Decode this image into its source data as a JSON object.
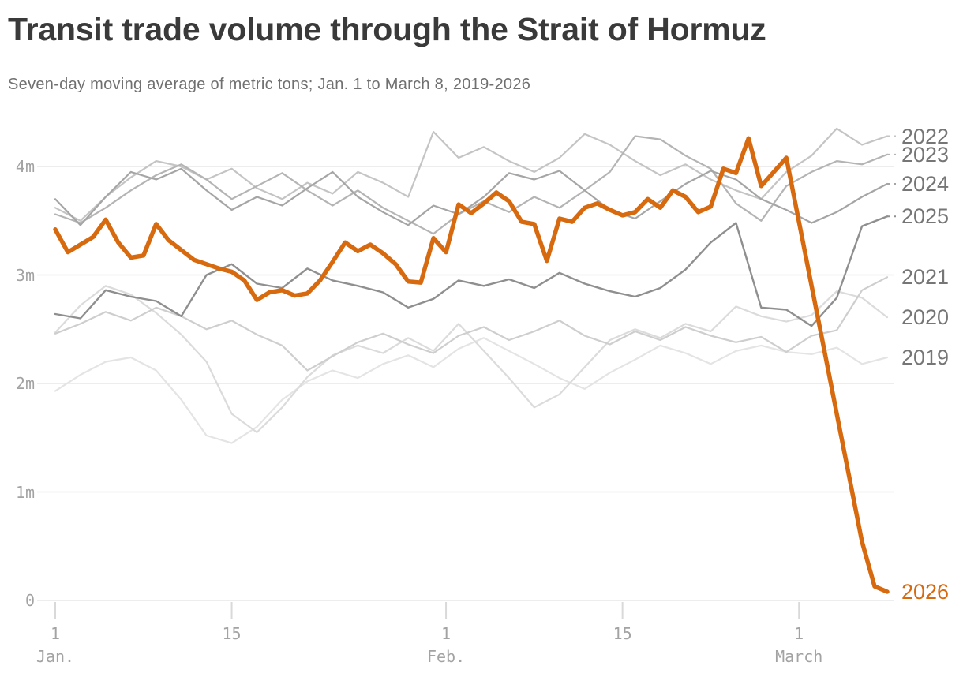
{
  "chart_data": {
    "type": "line",
    "title": "Transit trade volume through the Strait of Hormuz",
    "subtitle": "Seven-day moving average of metric tons; Jan. 1 to March 8, 2019-2026",
    "xlabel": "",
    "ylabel": "",
    "x_unit": "days since Jan. 1",
    "x_range_days": [
      0,
      66
    ],
    "ylim": [
      0,
      4.45
    ],
    "grid": "horizontal",
    "legend_position": "right-edge-labels",
    "highlight_series": "2026",
    "colors": {
      "highlight": "#d7690f",
      "gridline": "#e7e7e7",
      "tick_text": "#a3a3a3",
      "label_text": "#767676",
      "title_text": "#3a3a3a",
      "subtitle_text": "#707070"
    },
    "yticks": [
      {
        "value": 0,
        "label": "0"
      },
      {
        "value": 1,
        "label": "1m"
      },
      {
        "value": 2,
        "label": "2m"
      },
      {
        "value": 3,
        "label": "3m"
      },
      {
        "value": 4,
        "label": "4m"
      }
    ],
    "xticks": [
      {
        "day": 0,
        "day_label": "1",
        "month_label": "Jan."
      },
      {
        "day": 14,
        "day_label": "15",
        "month_label": ""
      },
      {
        "day": 31,
        "day_label": "1",
        "month_label": "Feb."
      },
      {
        "day": 45,
        "day_label": "15",
        "month_label": ""
      },
      {
        "day": 59,
        "day_label": "1",
        "month_label": "March"
      }
    ],
    "dashed_label_leaders": [
      "2022",
      "2023",
      "2024",
      "2025"
    ],
    "series": [
      {
        "name": "2019",
        "color": "#e4e4e4",
        "width": 2.2,
        "step_days": 2,
        "values": [
          1.93,
          2.08,
          2.2,
          2.24,
          2.12,
          1.85,
          1.52,
          1.45,
          1.6,
          1.85,
          2.02,
          2.12,
          2.05,
          2.18,
          2.26,
          2.15,
          2.32,
          2.42,
          2.3,
          2.18,
          2.05,
          1.95,
          2.1,
          2.22,
          2.35,
          2.28,
          2.18,
          2.3,
          2.35,
          2.29,
          2.27,
          2.33,
          2.18,
          2.24
        ]
      },
      {
        "name": "2020",
        "color": "#dbdbdb",
        "width": 2.2,
        "step_days": 2,
        "values": [
          2.47,
          2.72,
          2.9,
          2.82,
          2.65,
          2.45,
          2.2,
          1.72,
          1.55,
          1.78,
          2.06,
          2.26,
          2.35,
          2.28,
          2.42,
          2.3,
          2.55,
          2.3,
          2.05,
          1.78,
          1.9,
          2.15,
          2.4,
          2.5,
          2.42,
          2.55,
          2.48,
          2.71,
          2.62,
          2.57,
          2.63,
          2.85,
          2.79,
          2.61
        ]
      },
      {
        "name": "2021",
        "color": "#cecece",
        "width": 2.2,
        "step_days": 2,
        "values": [
          2.46,
          2.55,
          2.66,
          2.58,
          2.7,
          2.62,
          2.5,
          2.58,
          2.45,
          2.35,
          2.12,
          2.25,
          2.38,
          2.46,
          2.36,
          2.28,
          2.44,
          2.52,
          2.4,
          2.48,
          2.58,
          2.44,
          2.36,
          2.48,
          2.4,
          2.52,
          2.44,
          2.38,
          2.43,
          2.29,
          2.44,
          2.49,
          2.86,
          2.98
        ]
      },
      {
        "name": "2022",
        "color": "#c4c4c4",
        "width": 2.2,
        "step_days": 2,
        "values": [
          3.62,
          3.5,
          3.72,
          3.9,
          4.05,
          4.0,
          3.88,
          3.98,
          3.8,
          3.7,
          3.85,
          3.75,
          3.95,
          3.85,
          3.72,
          4.32,
          4.08,
          4.18,
          4.05,
          3.95,
          4.08,
          4.3,
          4.2,
          4.05,
          3.92,
          4.02,
          3.88,
          3.78,
          3.7,
          3.95,
          4.1,
          4.35,
          4.2,
          4.28
        ]
      },
      {
        "name": "2023",
        "color": "#b4b4b4",
        "width": 2.2,
        "step_days": 2,
        "values": [
          3.56,
          3.48,
          3.62,
          3.78,
          3.92,
          4.02,
          3.88,
          3.7,
          3.82,
          3.94,
          3.78,
          3.64,
          3.78,
          3.62,
          3.5,
          3.38,
          3.56,
          3.68,
          3.58,
          3.72,
          3.62,
          3.78,
          3.95,
          4.28,
          4.25,
          4.1,
          3.98,
          3.66,
          3.5,
          3.82,
          3.95,
          4.05,
          4.02,
          4.11
        ]
      },
      {
        "name": "2024",
        "color": "#a5a5a5",
        "width": 2.2,
        "step_days": 2,
        "values": [
          3.7,
          3.46,
          3.72,
          3.95,
          3.88,
          3.98,
          3.78,
          3.6,
          3.72,
          3.64,
          3.8,
          3.95,
          3.72,
          3.58,
          3.46,
          3.64,
          3.56,
          3.72,
          3.94,
          3.88,
          3.96,
          3.78,
          3.6,
          3.52,
          3.68,
          3.84,
          3.96,
          3.88,
          3.7,
          3.6,
          3.48,
          3.58,
          3.72,
          3.84
        ]
      },
      {
        "name": "2025",
        "color": "#8f8f8f",
        "width": 2.4,
        "step_days": 2,
        "values": [
          2.64,
          2.6,
          2.86,
          2.8,
          2.76,
          2.62,
          3.0,
          3.1,
          2.92,
          2.88,
          3.06,
          2.95,
          2.9,
          2.84,
          2.7,
          2.78,
          2.95,
          2.9,
          2.96,
          2.88,
          3.02,
          2.92,
          2.85,
          2.8,
          2.88,
          3.05,
          3.3,
          3.48,
          2.7,
          2.68,
          2.53,
          2.79,
          3.45,
          3.54
        ]
      },
      {
        "name": "2026",
        "color": "#d7690f",
        "width": 5.5,
        "step_days": 1,
        "values": [
          3.42,
          3.21,
          3.28,
          3.35,
          3.51,
          3.3,
          3.16,
          3.18,
          3.47,
          3.32,
          3.23,
          3.14,
          3.1,
          3.06,
          3.03,
          2.95,
          2.77,
          2.84,
          2.86,
          2.81,
          2.83,
          2.95,
          3.12,
          3.3,
          3.22,
          3.28,
          3.2,
          3.1,
          2.94,
          2.93,
          3.34,
          3.21,
          3.65,
          3.57,
          3.66,
          3.76,
          3.68,
          3.49,
          3.47,
          3.13,
          3.52,
          3.49,
          3.62,
          3.66,
          3.6,
          3.55,
          3.58,
          3.7,
          3.62,
          3.78,
          3.72,
          3.58,
          3.63,
          3.98,
          3.94,
          4.26,
          3.82,
          3.95,
          4.08,
          3.49,
          2.9,
          2.31,
          1.72,
          1.13,
          0.54,
          0.13,
          0.08
        ]
      }
    ]
  }
}
